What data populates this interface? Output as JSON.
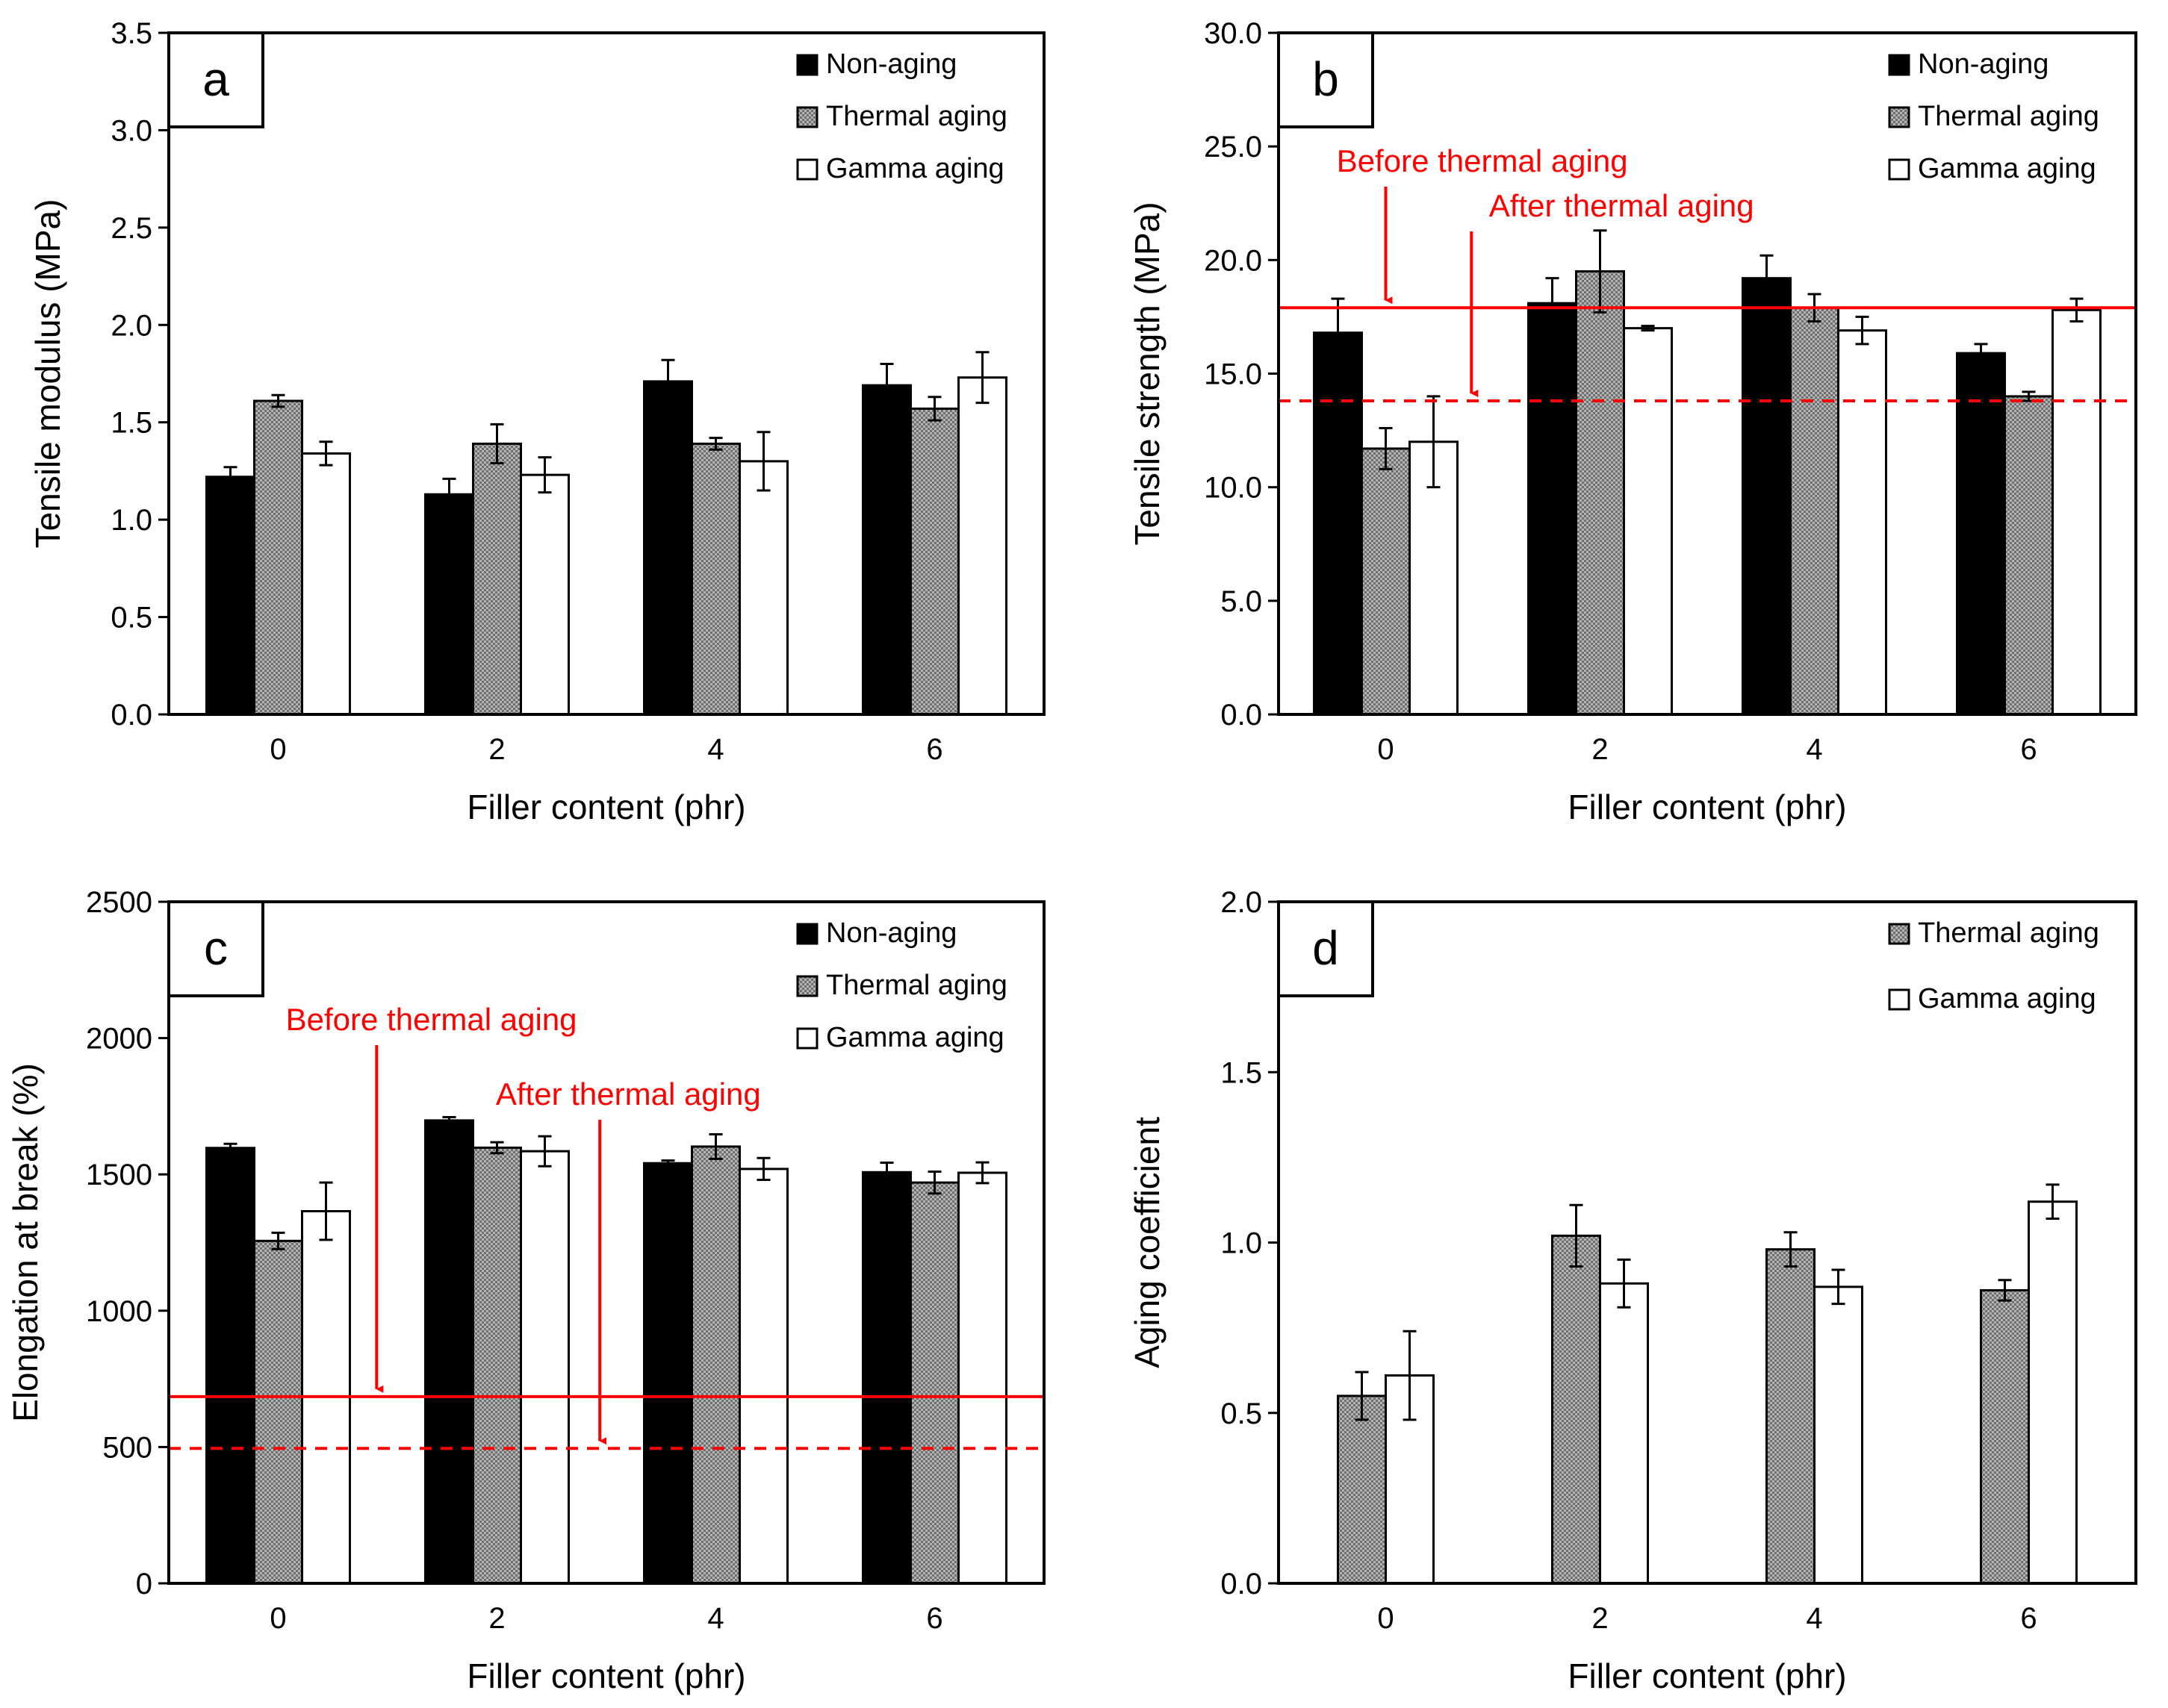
{
  "colors": {
    "non_aging": "#000000",
    "thermal_aging": "#8c8c8c",
    "gamma_aging": "#ffffff",
    "reference": "#ff0000",
    "axis": "#000000"
  },
  "chart_data": [
    {
      "panel": "a",
      "type": "bar",
      "categories": [
        "0",
        "2",
        "4",
        "6"
      ],
      "xlabel": "Filler content (phr)",
      "ylabel": "Tensile modulus (MPa)",
      "ylim": [
        0,
        3.5
      ],
      "yticks": [
        0,
        0.5,
        1.0,
        1.5,
        2.0,
        2.5,
        3.0,
        3.5
      ],
      "ytick_labels": [
        "0.0",
        "0.5",
        "1.0",
        "1.5",
        "2.0",
        "2.5",
        "3.0",
        "3.5"
      ],
      "legend_position": "top-right",
      "series": [
        {
          "name": "Non-aging",
          "key": "non_aging",
          "values": [
            1.22,
            1.13,
            1.71,
            1.69
          ],
          "errors": [
            0.05,
            0.08,
            0.11,
            0.11
          ]
        },
        {
          "name": "Thermal aging",
          "key": "thermal_aging",
          "values": [
            1.61,
            1.39,
            1.39,
            1.57
          ],
          "errors": [
            0.03,
            0.1,
            0.03,
            0.06
          ]
        },
        {
          "name": "Gamma aging",
          "key": "gamma_aging",
          "values": [
            1.34,
            1.23,
            1.3,
            1.73
          ],
          "errors": [
            0.06,
            0.09,
            0.15,
            0.13
          ]
        }
      ],
      "reference_lines": []
    },
    {
      "panel": "b",
      "type": "bar",
      "categories": [
        "0",
        "2",
        "4",
        "6"
      ],
      "xlabel": "Filler content (phr)",
      "ylabel": "Tensile strength (MPa)",
      "ylim": [
        0,
        30
      ],
      "yticks": [
        0,
        5,
        10,
        15,
        20,
        25,
        30
      ],
      "ytick_labels": [
        "0.0",
        "5.0",
        "10.0",
        "15.0",
        "20.0",
        "25.0",
        "30.0"
      ],
      "legend_position": "top-right",
      "series": [
        {
          "name": "Non-aging",
          "key": "non_aging",
          "values": [
            16.8,
            18.1,
            19.2,
            15.9
          ],
          "errors": [
            1.5,
            1.1,
            1.0,
            0.4
          ]
        },
        {
          "name": "Thermal aging",
          "key": "thermal_aging",
          "values": [
            11.7,
            19.5,
            17.9,
            14.0
          ],
          "errors": [
            0.9,
            1.8,
            0.6,
            0.2
          ]
        },
        {
          "name": "Gamma aging",
          "key": "gamma_aging",
          "values": [
            12.0,
            17.0,
            16.9,
            17.8
          ],
          "errors": [
            2.0,
            0.1,
            0.6,
            0.5
          ]
        }
      ],
      "reference_lines": [
        {
          "label": "Before thermal aging",
          "value": 17.9,
          "style": "solid",
          "arrow_x": 0.0,
          "label_anchor_x": 0.45
        },
        {
          "label": "After thermal aging",
          "value": 13.8,
          "style": "dashed",
          "arrow_x": 0.4,
          "label_anchor_x": 1.1
        }
      ]
    },
    {
      "panel": "c",
      "type": "bar",
      "categories": [
        "0",
        "2",
        "4",
        "6"
      ],
      "xlabel": "Filler content (phr)",
      "ylabel": "Elongation at break (%)",
      "ylim": [
        0,
        2500
      ],
      "yticks": [
        0,
        500,
        1000,
        1500,
        2000,
        2500
      ],
      "ytick_labels": [
        "0",
        "500",
        "1000",
        "1500",
        "2000",
        "2500"
      ],
      "legend_position": "top-right",
      "series": [
        {
          "name": "Non-aging",
          "key": "non_aging",
          "values": [
            1597,
            1698,
            1541,
            1508
          ],
          "errors": [
            15,
            12,
            10,
            35
          ]
        },
        {
          "name": "Thermal aging",
          "key": "thermal_aging",
          "values": [
            1256,
            1598,
            1602,
            1470
          ],
          "errors": [
            30,
            20,
            45,
            40
          ]
        },
        {
          "name": "Gamma aging",
          "key": "gamma_aging",
          "values": [
            1365,
            1585,
            1520,
            1506
          ],
          "errors": [
            105,
            55,
            40,
            38
          ]
        }
      ],
      "reference_lines": [
        {
          "label": "Before thermal aging",
          "value": 685,
          "style": "solid",
          "arrow_x": 0.45,
          "label_anchor_x": 0.7
        },
        {
          "label": "After thermal aging",
          "value": 495,
          "style": "dashed",
          "arrow_x": 1.47,
          "label_anchor_x": 1.6
        }
      ]
    },
    {
      "panel": "d",
      "type": "bar",
      "categories": [
        "0",
        "2",
        "4",
        "6"
      ],
      "xlabel": "Filler content (phr)",
      "ylabel": "Aging coefficient",
      "ylim": [
        0,
        2.0
      ],
      "yticks": [
        0,
        0.5,
        1.0,
        1.5,
        2.0
      ],
      "ytick_labels": [
        "0.0",
        "0.5",
        "1.0",
        "1.5",
        "2.0"
      ],
      "legend_position": "top-right",
      "series": [
        {
          "name": "Thermal aging",
          "key": "thermal_aging",
          "values": [
            0.55,
            1.02,
            0.98,
            0.86
          ],
          "errors": [
            0.07,
            0.09,
            0.05,
            0.03
          ]
        },
        {
          "name": "Gamma aging",
          "key": "gamma_aging",
          "values": [
            0.61,
            0.88,
            0.87,
            1.12
          ],
          "errors": [
            0.13,
            0.07,
            0.05,
            0.05
          ]
        }
      ],
      "reference_lines": []
    }
  ]
}
